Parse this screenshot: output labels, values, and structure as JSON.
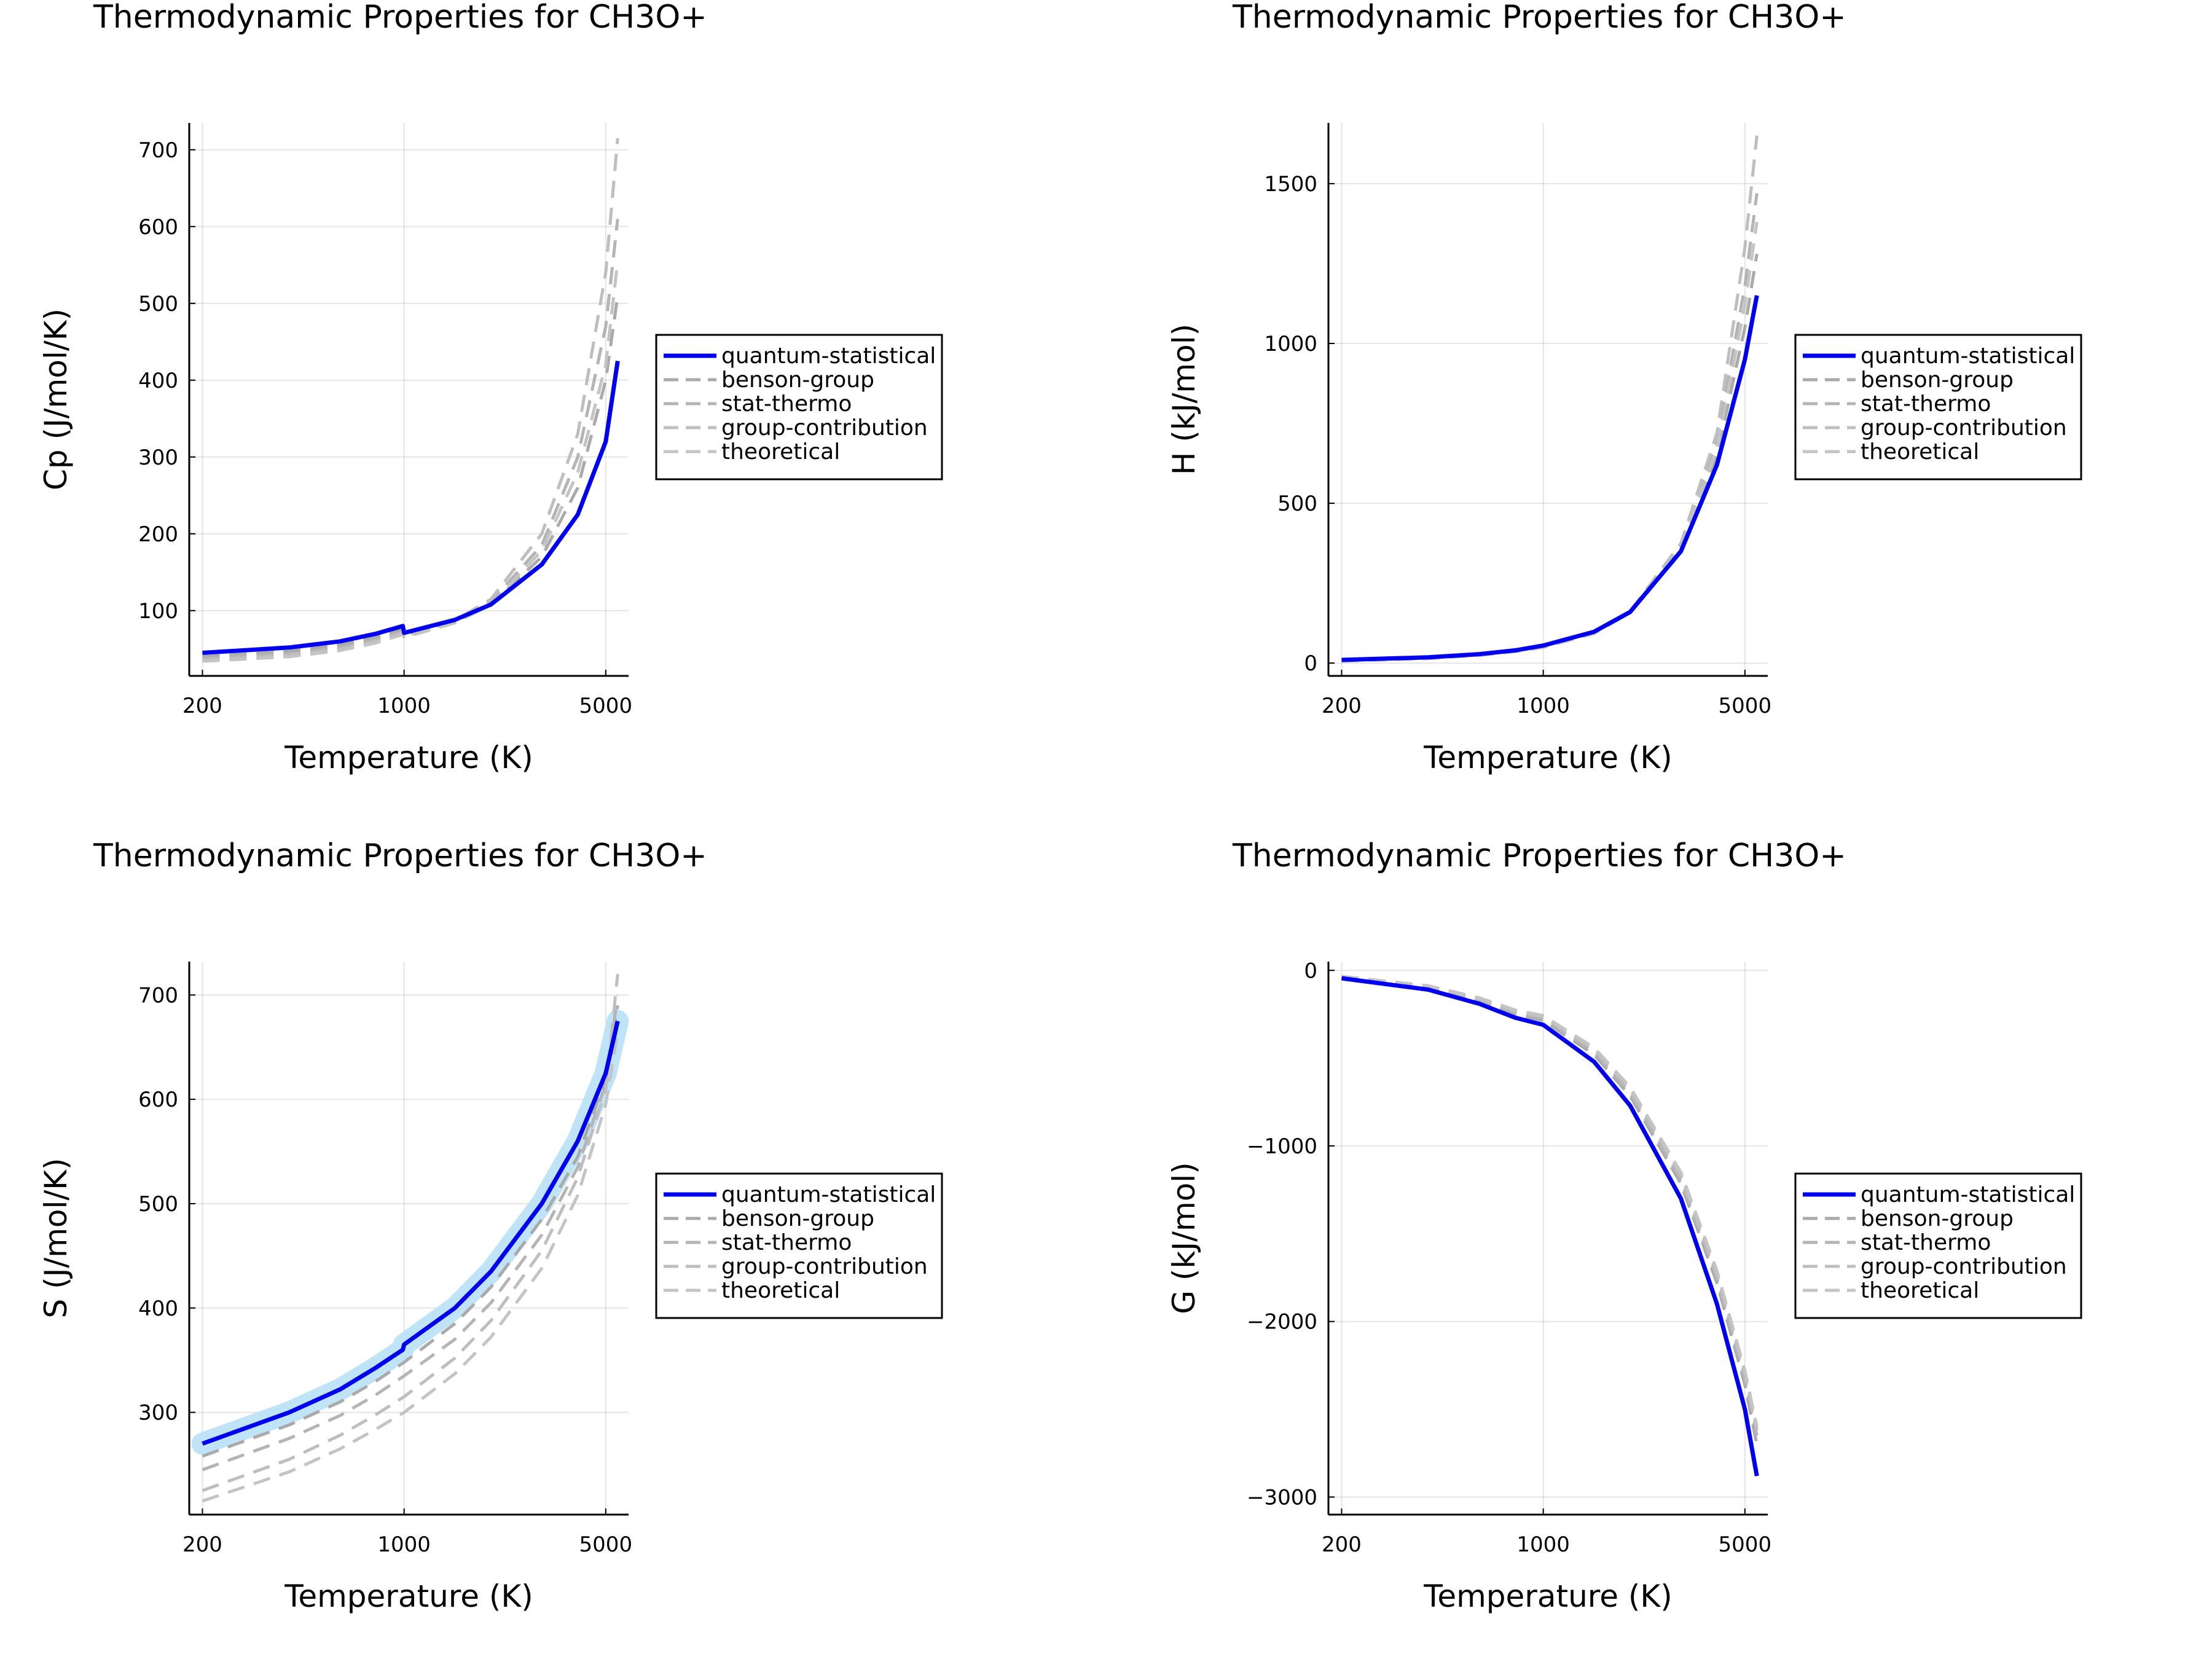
{
  "chart_data": [
    {
      "type": "line",
      "title": "Thermodynamic Properties for CH3O+",
      "xlabel": "Temperature (K)",
      "ylabel": "Cp (J/mol/K)",
      "xscale": "log",
      "xlim": [
        180,
        6000
      ],
      "ylim": [
        15,
        735
      ],
      "xticks": [
        {
          "v": 200,
          "label": "200"
        },
        {
          "v": 1000,
          "label": "1000"
        },
        {
          "v": 5000,
          "label": "5000"
        }
      ],
      "yticks": [
        {
          "v": 100,
          "label": "100"
        },
        {
          "v": 200,
          "label": "200"
        },
        {
          "v": 300,
          "label": "300"
        },
        {
          "v": 400,
          "label": "400"
        },
        {
          "v": 500,
          "label": "500"
        },
        {
          "v": 600,
          "label": "600"
        },
        {
          "v": 700,
          "label": "700"
        }
      ],
      "grid": true,
      "legend": "outer-right",
      "series": [
        {
          "name": "quantum-statistical",
          "color": "#0000ee",
          "style": "solid",
          "x": [
            200,
            400,
            600,
            800,
            990,
            1000,
            1500,
            2000,
            3000,
            4000,
            5000,
            5500
          ],
          "y": [
            45,
            52,
            60,
            70,
            80,
            71,
            88,
            108,
            160,
            225,
            320,
            425
          ]
        },
        {
          "name": "benson-group",
          "color": "#aaaaaa",
          "style": "dashed",
          "x": [
            200,
            400,
            600,
            800,
            990,
            1000,
            1500,
            2000,
            3000,
            4000,
            5000,
            5500
          ],
          "y": [
            40,
            47,
            55,
            65,
            76,
            68,
            86,
            108,
            170,
            260,
            400,
            510
          ]
        },
        {
          "name": "stat-thermo",
          "color": "#b4b4b4",
          "style": "dashed",
          "x": [
            200,
            400,
            600,
            800,
            990,
            1000,
            1500,
            2000,
            3000,
            4000,
            5000,
            5500
          ],
          "y": [
            38,
            44,
            52,
            62,
            73,
            67,
            86,
            112,
            185,
            300,
            470,
            610
          ]
        },
        {
          "name": "group-contribution",
          "color": "#bebebe",
          "style": "dashed",
          "x": [
            200,
            400,
            600,
            800,
            990,
            1000,
            1500,
            2000,
            3000,
            4000,
            5000,
            5500
          ],
          "y": [
            36,
            42,
            50,
            60,
            71,
            66,
            87,
            115,
            200,
            330,
            540,
            715
          ]
        },
        {
          "name": "theoretical",
          "color": "#c4c4c4",
          "style": "dashed",
          "x": [
            200,
            400,
            600,
            800,
            990,
            1000,
            1500,
            2000,
            3000,
            4000,
            5000,
            5500
          ],
          "y": [
            34,
            40,
            48,
            58,
            69,
            65,
            84,
            108,
            178,
            280,
            420,
            555
          ]
        }
      ]
    },
    {
      "type": "line",
      "title": "Thermodynamic Properties for CH3O+",
      "xlabel": "Temperature (K)",
      "ylabel": "H (kJ/mol)",
      "xscale": "log",
      "xlim": [
        180,
        6000
      ],
      "ylim": [
        -40,
        1690
      ],
      "xticks": [
        {
          "v": 200,
          "label": "200"
        },
        {
          "v": 1000,
          "label": "1000"
        },
        {
          "v": 5000,
          "label": "5000"
        }
      ],
      "yticks": [
        {
          "v": 0,
          "label": "0"
        },
        {
          "v": 500,
          "label": "500"
        },
        {
          "v": 1000,
          "label": "1000"
        },
        {
          "v": 1500,
          "label": "1500"
        }
      ],
      "grid": true,
      "legend": "outer-right",
      "series": [
        {
          "name": "quantum-statistical",
          "color": "#0000ee",
          "style": "solid",
          "x": [
            200,
            400,
            600,
            800,
            1000,
            1500,
            2000,
            3000,
            4000,
            5000,
            5500
          ],
          "y": [
            10,
            18,
            28,
            40,
            55,
            98,
            160,
            350,
            620,
            950,
            1150
          ]
        },
        {
          "name": "benson-group",
          "color": "#aaaaaa",
          "style": "dashed",
          "x": [
            200,
            400,
            600,
            800,
            1000,
            1500,
            2000,
            3000,
            4000,
            5000,
            5500
          ],
          "y": [
            9,
            17,
            27,
            39,
            52,
            95,
            158,
            355,
            650,
            1050,
            1280
          ]
        },
        {
          "name": "stat-thermo",
          "color": "#b4b4b4",
          "style": "dashed",
          "x": [
            200,
            400,
            600,
            800,
            1000,
            1500,
            2000,
            3000,
            4000,
            5000,
            5500
          ],
          "y": [
            8,
            16,
            26,
            38,
            51,
            94,
            160,
            365,
            690,
            1180,
            1470
          ]
        },
        {
          "name": "group-contribution",
          "color": "#bebebe",
          "style": "dashed",
          "x": [
            200,
            400,
            600,
            800,
            1000,
            1500,
            2000,
            3000,
            4000,
            5000,
            5500
          ],
          "y": [
            7,
            15,
            25,
            37,
            50,
            93,
            162,
            375,
            720,
            1300,
            1650
          ]
        },
        {
          "name": "theoretical",
          "color": "#c4c4c4",
          "style": "dashed",
          "x": [
            200,
            400,
            600,
            800,
            1000,
            1500,
            2000,
            3000,
            4000,
            5000,
            5500
          ],
          "y": [
            6,
            14,
            24,
            36,
            49,
            92,
            158,
            360,
            670,
            1120,
            1380
          ]
        }
      ]
    },
    {
      "type": "line",
      "title": "Thermodynamic Properties for CH3O+",
      "xlabel": "Temperature (K)",
      "ylabel": "S (J/mol/K)",
      "xscale": "log",
      "xlim": [
        180,
        6000
      ],
      "ylim": [
        202,
        732
      ],
      "xticks": [
        {
          "v": 200,
          "label": "200"
        },
        {
          "v": 1000,
          "label": "1000"
        },
        {
          "v": 5000,
          "label": "5000"
        }
      ],
      "yticks": [
        {
          "v": 300,
          "label": "300"
        },
        {
          "v": 400,
          "label": "400"
        },
        {
          "v": 500,
          "label": "500"
        },
        {
          "v": 600,
          "label": "600"
        },
        {
          "v": 700,
          "label": "700"
        }
      ],
      "grid": true,
      "legend": "outer-right",
      "band": {
        "color": "#bfe3f7",
        "width": 12
      },
      "series": [
        {
          "name": "quantum-statistical",
          "color": "#0000ee",
          "style": "solid",
          "x": [
            200,
            400,
            600,
            800,
            990,
            1000,
            1500,
            2000,
            3000,
            4000,
            5000,
            5500
          ],
          "y": [
            270,
            300,
            322,
            343,
            360,
            365,
            400,
            435,
            500,
            560,
            625,
            675
          ]
        },
        {
          "name": "benson-group",
          "color": "#aaaaaa",
          "style": "dashed",
          "x": [
            200,
            400,
            600,
            800,
            1000,
            1500,
            2000,
            3000,
            4000,
            5000,
            5500
          ],
          "y": [
            258,
            288,
            310,
            330,
            348,
            385,
            420,
            485,
            545,
            620,
            690
          ]
        },
        {
          "name": "stat-thermo",
          "color": "#b4b4b4",
          "style": "dashed",
          "x": [
            200,
            400,
            600,
            800,
            1000,
            1500,
            2000,
            3000,
            4000,
            5000,
            5500
          ],
          "y": [
            245,
            275,
            297,
            317,
            335,
            370,
            405,
            470,
            535,
            615,
            700
          ]
        },
        {
          "name": "group-contribution",
          "color": "#bebebe",
          "style": "dashed",
          "x": [
            200,
            400,
            600,
            800,
            1000,
            1500,
            2000,
            3000,
            4000,
            5000,
            5500
          ],
          "y": [
            225,
            255,
            278,
            298,
            315,
            352,
            388,
            455,
            525,
            610,
            720
          ]
        },
        {
          "name": "theoretical",
          "color": "#c4c4c4",
          "style": "dashed",
          "x": [
            200,
            400,
            600,
            800,
            1000,
            1500,
            2000,
            3000,
            4000,
            5000,
            5500
          ],
          "y": [
            215,
            243,
            265,
            284,
            300,
            337,
            372,
            438,
            508,
            595,
            665
          ]
        }
      ]
    },
    {
      "type": "line",
      "title": "Thermodynamic Properties for CH3O+",
      "xlabel": "Temperature (K)",
      "ylabel": "G (kJ/mol)",
      "xscale": "log",
      "xlim": [
        180,
        6000
      ],
      "ylim": [
        -3100,
        50
      ],
      "xticks": [
        {
          "v": 200,
          "label": "200"
        },
        {
          "v": 1000,
          "label": "1000"
        },
        {
          "v": 5000,
          "label": "5000"
        }
      ],
      "yticks": [
        {
          "v": 0,
          "label": "0"
        },
        {
          "v": -1000,
          "label": "−1000"
        },
        {
          "v": -2000,
          "label": "−2000"
        },
        {
          "v": -3000,
          "label": "−3000"
        }
      ],
      "grid": true,
      "legend": "outer-right",
      "series": [
        {
          "name": "quantum-statistical",
          "color": "#0000ee",
          "style": "solid",
          "x": [
            200,
            400,
            600,
            800,
            1000,
            1500,
            2000,
            3000,
            4000,
            5000,
            5500
          ],
          "y": [
            -45,
            -110,
            -190,
            -270,
            -310,
            -520,
            -770,
            -1300,
            -1900,
            -2500,
            -2880
          ]
        },
        {
          "name": "benson-group",
          "color": "#aaaaaa",
          "style": "dashed",
          "x": [
            200,
            400,
            600,
            800,
            1000,
            1500,
            2000,
            3000,
            4000,
            5000,
            5500
          ],
          "y": [
            -40,
            -100,
            -175,
            -250,
            -285,
            -480,
            -715,
            -1215,
            -1780,
            -2360,
            -2700
          ]
        },
        {
          "name": "stat-thermo",
          "color": "#b4b4b4",
          "style": "dashed",
          "x": [
            200,
            400,
            600,
            800,
            1000,
            1500,
            2000,
            3000,
            4000,
            5000,
            5500
          ],
          "y": [
            -38,
            -96,
            -168,
            -242,
            -275,
            -465,
            -700,
            -1195,
            -1755,
            -2330,
            -2650
          ]
        },
        {
          "name": "group-contribution",
          "color": "#bebebe",
          "style": "dashed",
          "x": [
            200,
            400,
            600,
            800,
            1000,
            1500,
            2000,
            3000,
            4000,
            5000,
            5500
          ],
          "y": [
            -36,
            -92,
            -162,
            -234,
            -265,
            -450,
            -680,
            -1170,
            -1730,
            -2300,
            -2620
          ]
        },
        {
          "name": "theoretical",
          "color": "#c4c4c4",
          "style": "dashed",
          "x": [
            200,
            400,
            600,
            800,
            1000,
            1500,
            2000,
            3000,
            4000,
            5000,
            5500
          ],
          "y": [
            -34,
            -88,
            -156,
            -226,
            -258,
            -440,
            -665,
            -1150,
            -1710,
            -2280,
            -2600
          ]
        }
      ]
    }
  ]
}
